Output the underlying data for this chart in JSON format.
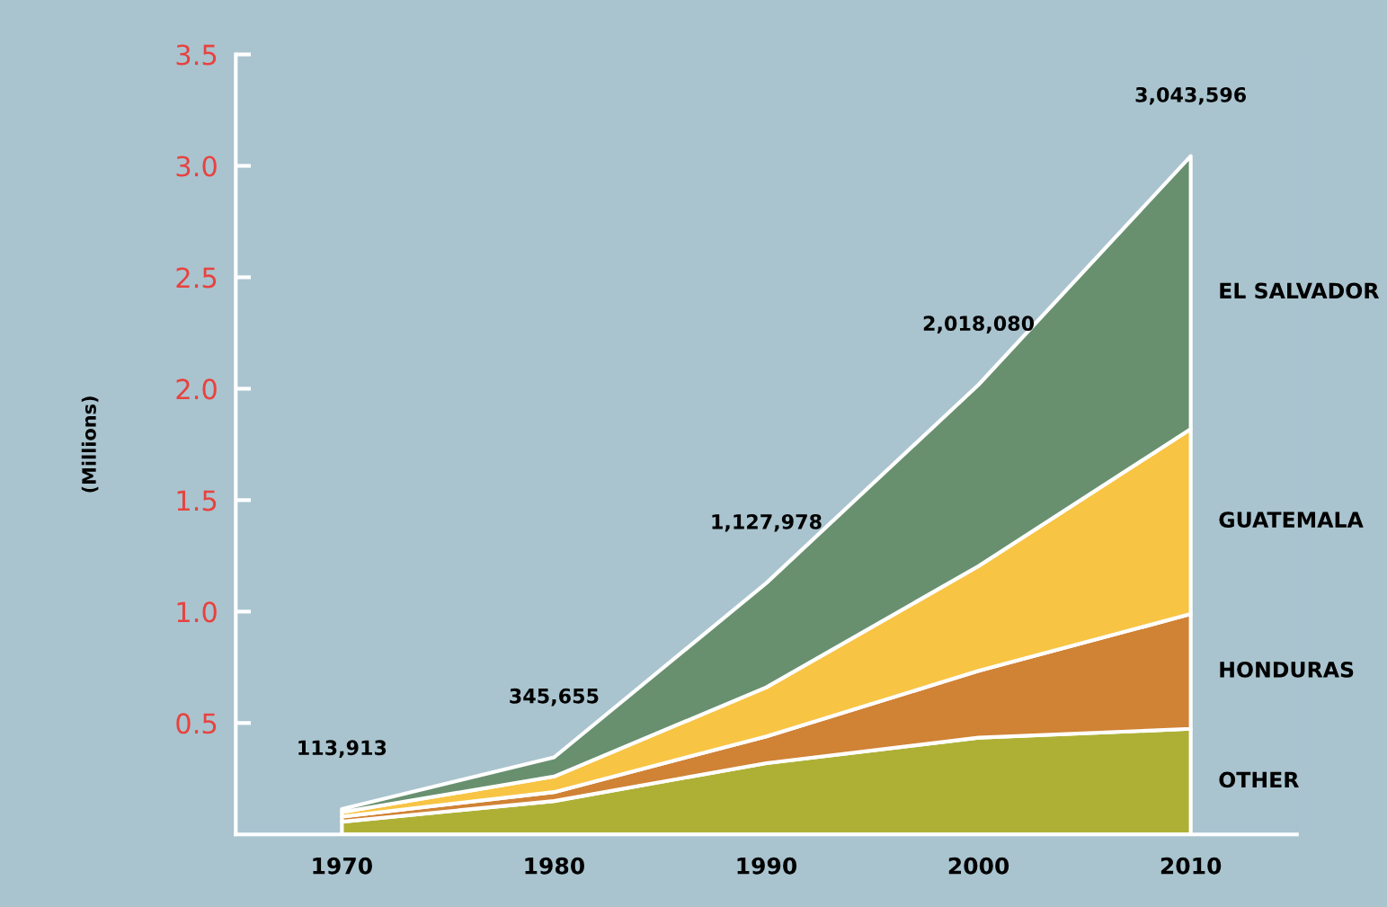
{
  "chart_data": {
    "type": "area",
    "stacked": true,
    "ylabel": "(Millions)",
    "x": [
      1970,
      1980,
      1990,
      2000,
      2010
    ],
    "xlim": [
      1965,
      2015
    ],
    "xticks": [
      1970,
      1980,
      1990,
      2000,
      2010
    ],
    "ylim": [
      0,
      3.5
    ],
    "yticks": [
      0.5,
      {
        "value": 1,
        "label": "1.0"
      },
      1.5,
      {
        "value": 2,
        "label": "2.0"
      },
      2.5,
      {
        "value": 3,
        "label": "3.0"
      },
      3.5
    ],
    "grid": false,
    "legend": false,
    "series": [
      {
        "name": "OTHER",
        "color": "#aeb036",
        "values": [
          0.057,
          0.15,
          0.32,
          0.434,
          0.474
        ]
      },
      {
        "name": "HONDURAS",
        "color": "#d08235",
        "values": [
          0.023,
          0.04,
          0.12,
          0.3,
          0.515
        ]
      },
      {
        "name": "GUATEMALA",
        "color": "#f7c444",
        "values": [
          0.02,
          0.07,
          0.22,
          0.47,
          0.83
        ]
      },
      {
        "name": "EL SALVADOR",
        "color": "#68906f",
        "values": [
          0.014,
          0.086,
          0.468,
          0.814,
          1.225
        ]
      }
    ],
    "annotations": [
      {
        "text": "113,913",
        "x": 1970,
        "y": 0.114
      },
      {
        "text": "345,655",
        "x": 1980,
        "y": 0.346
      },
      {
        "text": "1,127,978",
        "x": 1990,
        "y": 1.128
      },
      {
        "text": "2,018,080",
        "x": 2000,
        "y": 2.018
      },
      {
        "text": "3,043,596",
        "x": 2010,
        "y": 3.044
      }
    ]
  }
}
